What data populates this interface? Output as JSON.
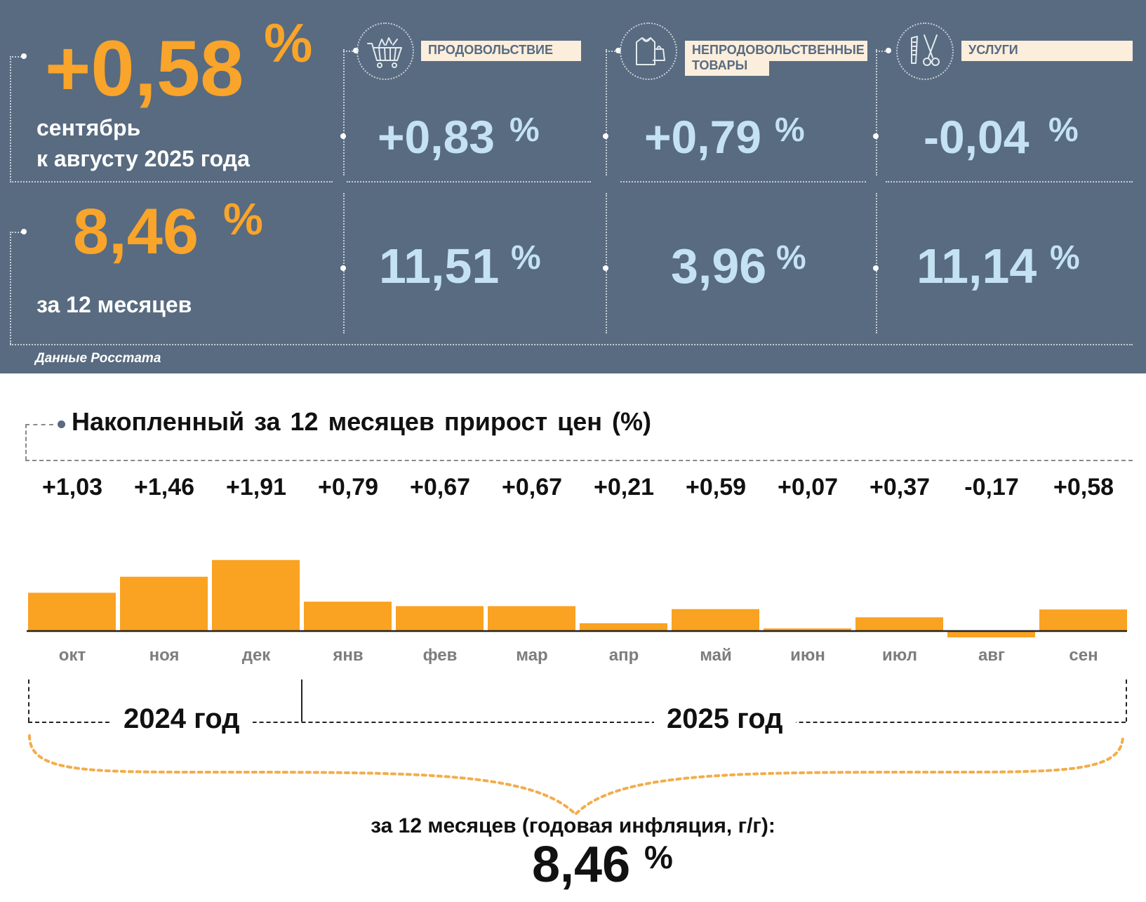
{
  "monthly": {
    "value": "+0,58",
    "unit": "%",
    "caption_line1": "сентябрь",
    "caption_line2": "к августу 2025 года"
  },
  "annual": {
    "value": "8,46",
    "unit": "%",
    "caption": "за 12 месяцев"
  },
  "categories": [
    {
      "label": "ПРОДОВОЛЬСТВИЕ",
      "icon": "shopping-cart-icon",
      "monthly": "+0,83",
      "annual": "11,51",
      "unit": "%"
    },
    {
      "label": "НЕПРОДОВОЛЬСТВЕННЫЕ ТОВАРЫ",
      "label_line1": "НЕПРОДОВОЛЬСТВЕННЫЕ",
      "label_line2": "ТОВАРЫ",
      "icon": "clothing-icon",
      "monthly": "+0,79",
      "annual": "3,96",
      "unit": "%"
    },
    {
      "label": "УСЛУГИ",
      "icon": "scissors-comb-icon",
      "monthly": "-0,04",
      "annual": "11,14",
      "unit": "%"
    }
  ],
  "source": "Данные Росстата",
  "colors": {
    "panel_bg": "#586b80",
    "accent_orange": "#f9a42a",
    "value_blue": "#c4e2f2",
    "label_bg": "#fbeedc",
    "bar_orange": "#faa221"
  },
  "chart_data": {
    "type": "bar",
    "title": "Накопленный за 12 месяцев прирост цен (%)",
    "categories": [
      "окт",
      "ноя",
      "дек",
      "янв",
      "фев",
      "мар",
      "апр",
      "май",
      "июн",
      "июл",
      "авг",
      "сен"
    ],
    "values": [
      1.03,
      1.46,
      1.91,
      0.79,
      0.67,
      0.67,
      0.21,
      0.59,
      0.07,
      0.37,
      -0.17,
      0.58
    ],
    "value_labels": [
      "+1,03",
      "+1,46",
      "+1,91",
      "+0,79",
      "+0,67",
      "+0,67",
      "+0,21",
      "+0,59",
      "+0,07",
      "+0,37",
      "-0,17",
      "+0,58"
    ],
    "years": [
      {
        "label": "2024 год",
        "months": [
          "окт",
          "ноя",
          "дек"
        ]
      },
      {
        "label": "2025 год",
        "months": [
          "янв",
          "фев",
          "мар",
          "апр",
          "май",
          "июн",
          "июл",
          "авг",
          "сен"
        ]
      }
    ],
    "total_caption": "за 12 месяцев (годовая инфляция, г/г):",
    "total_value": "8,46",
    "total_unit": "%",
    "grid": false
  }
}
